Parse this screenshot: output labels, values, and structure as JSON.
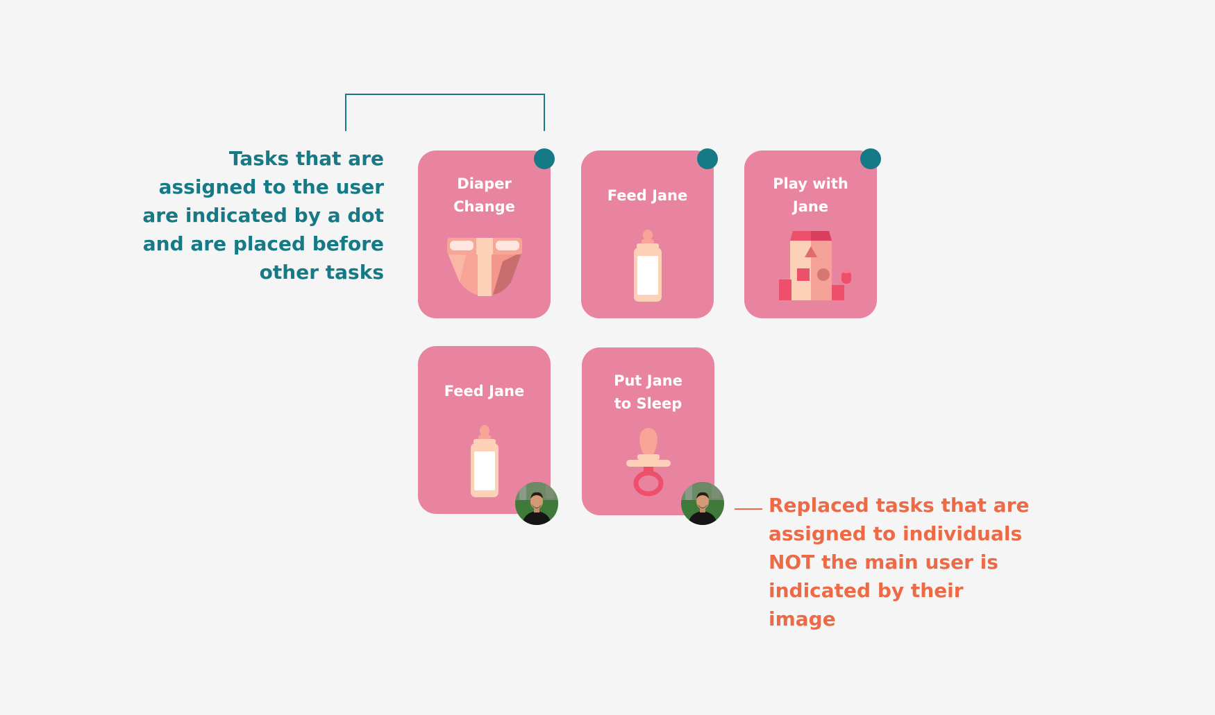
{
  "annotations": {
    "assigned_note": [
      "Tasks that are",
      "assigned to the user",
      "are indicated by a dot",
      "and are placed before",
      "other tasks"
    ],
    "others_note": [
      "Replaced tasks that are",
      "assigned to individuals",
      "NOT the main user is",
      "indicated by their",
      "image"
    ]
  },
  "cards": [
    {
      "title": "Diaper Change",
      "title_lines": [
        "Diaper",
        "Change"
      ],
      "icon": "diaper-icon",
      "assignment": "user-dot"
    },
    {
      "title": "Feed Jane",
      "title_lines": [
        "Feed Jane"
      ],
      "icon": "baby-bottle-icon",
      "assignment": "user-dot"
    },
    {
      "title": "Play with Jane",
      "title_lines": [
        "Play with",
        "Jane"
      ],
      "icon": "toy-blocks-icon",
      "assignment": "user-dot"
    },
    {
      "title": "Feed Jane",
      "title_lines": [
        "Feed Jane"
      ],
      "icon": "baby-bottle-icon",
      "assignment": "other-avatar"
    },
    {
      "title": "Put Jane to Sleep",
      "title_lines": [
        "Put Jane",
        "to Sleep"
      ],
      "icon": "pacifier-icon",
      "assignment": "other-avatar"
    }
  ],
  "colors": {
    "background": "#f5f5f5",
    "card": "#e8849f",
    "accent_teal": "#157a85",
    "accent_orange": "#ec6a45",
    "card_text": "#ffffff"
  }
}
